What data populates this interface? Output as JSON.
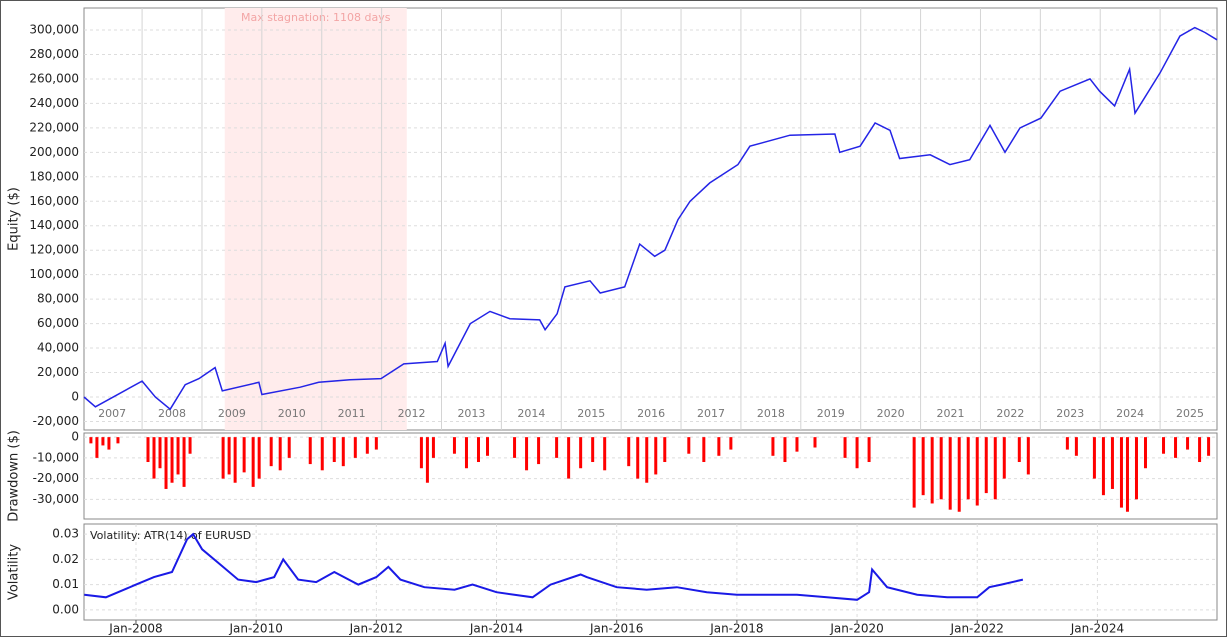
{
  "chart_data": [
    {
      "type": "line",
      "ylabel": "Equity ($)",
      "color": "#2424e6",
      "stagnation": {
        "label": "Max stagnation: 1108 days",
        "start": 2009.38,
        "end": 2012.42
      },
      "xlim": [
        2007.03,
        2025.95
      ],
      "xticks": [
        2007,
        2008,
        2009,
        2010,
        2011,
        2012,
        2013,
        2014,
        2015,
        2016,
        2017,
        2018,
        2019,
        2020,
        2021,
        2022,
        2023,
        2024,
        2025
      ],
      "ylim": [
        -27000,
        318000
      ],
      "yticks": [
        {
          "value": -20000,
          "label": "-20,000"
        },
        0,
        {
          "value": 20000,
          "label": "20,000"
        },
        {
          "value": 40000,
          "label": "40,000"
        },
        {
          "value": 60000,
          "label": "60,000"
        },
        {
          "value": 80000,
          "label": "80,000"
        },
        {
          "value": 100000,
          "label": "100,000"
        },
        {
          "value": 120000,
          "label": "120,000"
        },
        {
          "value": 140000,
          "label": "140,000"
        },
        {
          "value": 160000,
          "label": "160,000"
        },
        {
          "value": 180000,
          "label": "180,000"
        },
        {
          "value": 200000,
          "label": "200,000"
        },
        {
          "value": 220000,
          "label": "220,000"
        },
        {
          "value": 240000,
          "label": "240,000"
        },
        {
          "value": 260000,
          "label": "260,000"
        },
        {
          "value": 280000,
          "label": "280,000"
        },
        {
          "value": 300000,
          "label": "300,000"
        }
      ],
      "grid": true,
      "x": [
        2007.03,
        2007.22,
        2008.0,
        2008.22,
        2008.47,
        2008.72,
        2008.95,
        2009.22,
        2009.34,
        2009.95,
        2010.0,
        2010.64,
        2010.95,
        2011.47,
        2011.99,
        2012.37,
        2012.93,
        2013.06,
        2013.11,
        2013.48,
        2013.81,
        2014.14,
        2014.64,
        2014.73,
        2014.93,
        2015.06,
        2015.48,
        2015.65,
        2016.06,
        2016.31,
        2016.56,
        2016.73,
        2016.95,
        2017.15,
        2017.48,
        2017.95,
        2018.15,
        2018.82,
        2019.57,
        2019.65,
        2019.99,
        2020.24,
        2020.49,
        2020.65,
        2021.16,
        2021.49,
        2021.82,
        2022.16,
        2022.41,
        2022.66,
        2023.01,
        2023.33,
        2023.83,
        2023.99,
        2024.24,
        2024.49,
        2024.58,
        2025.0,
        2025.33,
        2025.58,
        2025.75,
        2025.95
      ],
      "values": [
        0,
        -8000,
        13000,
        0,
        -10000,
        10000,
        15000,
        24000,
        5000,
        12000,
        2000,
        8000,
        12000,
        14000,
        15000,
        27000,
        29000,
        44000,
        25000,
        60000,
        70000,
        64000,
        63000,
        55000,
        68000,
        90000,
        95000,
        85000,
        90000,
        125000,
        115000,
        120000,
        145000,
        160000,
        175000,
        190000,
        205000,
        214000,
        215000,
        200000,
        205000,
        224000,
        218000,
        195000,
        198000,
        190000,
        194000,
        222000,
        200000,
        220000,
        228000,
        250000,
        260000,
        250000,
        238000,
        268000,
        232000,
        265000,
        295000,
        302000,
        298000,
        292000
      ]
    },
    {
      "type": "bar",
      "ylabel": "Drawdown ($)",
      "color": "#ff0000",
      "xlim": [
        2007.135,
        2025.99
      ],
      "ylim": [
        -39500,
        2000
      ],
      "yticks": [
        {
          "value": -30000,
          "label": "-30,000"
        },
        {
          "value": -20000,
          "label": "-20,000"
        },
        {
          "value": -10000,
          "label": "-10,000"
        },
        0
      ],
      "grid": true,
      "x": [
        2007.25,
        2007.35,
        2007.45,
        2007.55,
        2007.7,
        2008.2,
        2008.3,
        2008.4,
        2008.5,
        2008.6,
        2008.7,
        2008.8,
        2008.9,
        2009.45,
        2009.55,
        2009.65,
        2009.8,
        2009.95,
        2010.05,
        2010.25,
        2010.4,
        2010.55,
        2010.9,
        2011.1,
        2011.3,
        2011.45,
        2011.65,
        2011.85,
        2012.0,
        2012.75,
        2012.85,
        2012.95,
        2013.3,
        2013.5,
        2013.7,
        2013.85,
        2014.3,
        2014.5,
        2014.7,
        2015.0,
        2015.2,
        2015.4,
        2015.6,
        2015.8,
        2016.2,
        2016.35,
        2016.5,
        2016.65,
        2016.8,
        2017.2,
        2017.45,
        2017.7,
        2017.9,
        2018.6,
        2018.8,
        2019.0,
        2019.3,
        2019.8,
        2020.0,
        2020.2,
        2020.95,
        2021.1,
        2021.25,
        2021.4,
        2021.55,
        2021.7,
        2021.85,
        2022.0,
        2022.15,
        2022.3,
        2022.45,
        2022.7,
        2022.85,
        2023.5,
        2023.65,
        2023.95,
        2024.1,
        2024.25,
        2024.4,
        2024.5,
        2024.65,
        2024.8,
        2025.1,
        2025.3,
        2025.5,
        2025.7,
        2025.85
      ],
      "values": [
        -3000,
        -10000,
        -4000,
        -6000,
        -3000,
        -12000,
        -20000,
        -15000,
        -25000,
        -22000,
        -18000,
        -24000,
        -8000,
        -20000,
        -18000,
        -22000,
        -17000,
        -24000,
        -20000,
        -14000,
        -16000,
        -10000,
        -13000,
        -16000,
        -12000,
        -14000,
        -10000,
        -8000,
        -6000,
        -15000,
        -22000,
        -10000,
        -8000,
        -15000,
        -12000,
        -9000,
        -10000,
        -16000,
        -13000,
        -10000,
        -20000,
        -15000,
        -12000,
        -16000,
        -14000,
        -20000,
        -22000,
        -18000,
        -12000,
        -8000,
        -12000,
        -9000,
        -6000,
        -9000,
        -12000,
        -7000,
        -5000,
        -10000,
        -15000,
        -12000,
        -34000,
        -28000,
        -32000,
        -30000,
        -35000,
        -36000,
        -30000,
        -33000,
        -27000,
        -30000,
        -20000,
        -12000,
        -18000,
        -6000,
        -9000,
        -20000,
        -28000,
        -25000,
        -34000,
        -36000,
        -30000,
        -15000,
        -8000,
        -10000,
        -6000,
        -12000,
        -9000
      ]
    },
    {
      "type": "line",
      "title": "Volatility: ATR(14) of EURUSD",
      "ylabel": "Volatility",
      "color": "#1a1ae6",
      "xlim": [
        2007.135,
        2025.99
      ],
      "xticks": [
        {
          "value": 2008,
          "label": "Jan-2008"
        },
        {
          "value": 2010,
          "label": "Jan-2010"
        },
        {
          "value": 2012,
          "label": "Jan-2012"
        },
        {
          "value": 2014,
          "label": "Jan-2014"
        },
        {
          "value": 2016,
          "label": "Jan-2016"
        },
        {
          "value": 2018,
          "label": "Jan-2018"
        },
        {
          "value": 2020,
          "label": "Jan-2020"
        },
        {
          "value": 2022,
          "label": "Jan-2022"
        },
        {
          "value": 2024,
          "label": "Jan-2024"
        }
      ],
      "ylim": [
        -0.004,
        0.034
      ],
      "yticks": [
        {
          "value": 0,
          "label": "0.00"
        },
        0.01,
        0.02,
        0.03
      ],
      "grid": true,
      "x": [
        2007.14,
        2007.5,
        2007.8,
        2008.0,
        2008.3,
        2008.6,
        2008.85,
        2008.95,
        2009.1,
        2009.4,
        2009.7,
        2010.0,
        2010.3,
        2010.45,
        2010.7,
        2011.0,
        2011.3,
        2011.7,
        2012.0,
        2012.2,
        2012.4,
        2012.8,
        2013.3,
        2013.6,
        2014.0,
        2014.6,
        2014.9,
        2015.4,
        2015.5,
        2016.0,
        2016.5,
        2017.0,
        2017.5,
        2018.0,
        2018.5,
        2019.0,
        2019.5,
        2020.0,
        2020.2,
        2020.25,
        2020.5,
        2021.0,
        2021.5,
        2022.0,
        2022.2,
        2022.4,
        2022.76
      ],
      "values": [
        0.006,
        0.005,
        0.008,
        0.01,
        0.013,
        0.015,
        0.028,
        0.03,
        0.024,
        0.018,
        0.012,
        0.011,
        0.013,
        0.02,
        0.012,
        0.011,
        0.015,
        0.01,
        0.013,
        0.017,
        0.012,
        0.009,
        0.008,
        0.01,
        0.007,
        0.005,
        0.01,
        0.014,
        0.013,
        0.009,
        0.008,
        0.009,
        0.007,
        0.006,
        0.006,
        0.006,
        0.005,
        0.004,
        0.007,
        0.016,
        0.009,
        0.006,
        0.005,
        0.005,
        0.009,
        0.01,
        0.012
      ]
    }
  ]
}
